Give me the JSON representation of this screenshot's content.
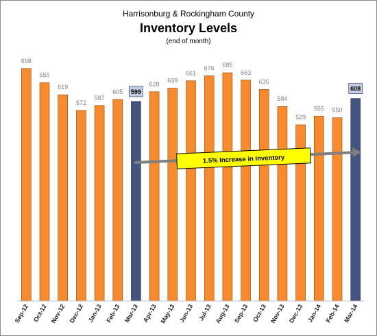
{
  "chart_data": {
    "type": "bar",
    "title_line1": "Harrisonburg & Rockingham County",
    "title": "Inventory Levels",
    "subtitle": "(end of month)",
    "categories": [
      "Sep-12",
      "Oct-12",
      "Nov-12",
      "Dec-12",
      "Jan-13",
      "Feb-13",
      "Mar-13",
      "Apr-13",
      "May-13",
      "Jun-13",
      "Jul-13",
      "Aug-13",
      "Sep-13",
      "Oct-13",
      "Nov-13",
      "Dec-13",
      "Jan-14",
      "Feb-14",
      "Mar-14"
    ],
    "values": [
      698,
      655,
      619,
      572,
      587,
      605,
      599,
      628,
      639,
      661,
      676,
      685,
      663,
      635,
      584,
      529,
      555,
      550,
      608
    ],
    "highlighted": [
      "Mar-13",
      "Mar-14"
    ],
    "annotation": "1.5% Increase in Inventory",
    "xlabel": "",
    "ylabel": "",
    "ylim": [
      0,
      710
    ],
    "grid": false,
    "legend": "none",
    "colors": {
      "bar": "#f58a2e",
      "bar_border": "#8a4a10",
      "highlight": "#44547f",
      "highlight_label_bg": "#c5cde3",
      "annotation_bg": "#ffff00",
      "arrow": "#7f7f7f"
    }
  }
}
